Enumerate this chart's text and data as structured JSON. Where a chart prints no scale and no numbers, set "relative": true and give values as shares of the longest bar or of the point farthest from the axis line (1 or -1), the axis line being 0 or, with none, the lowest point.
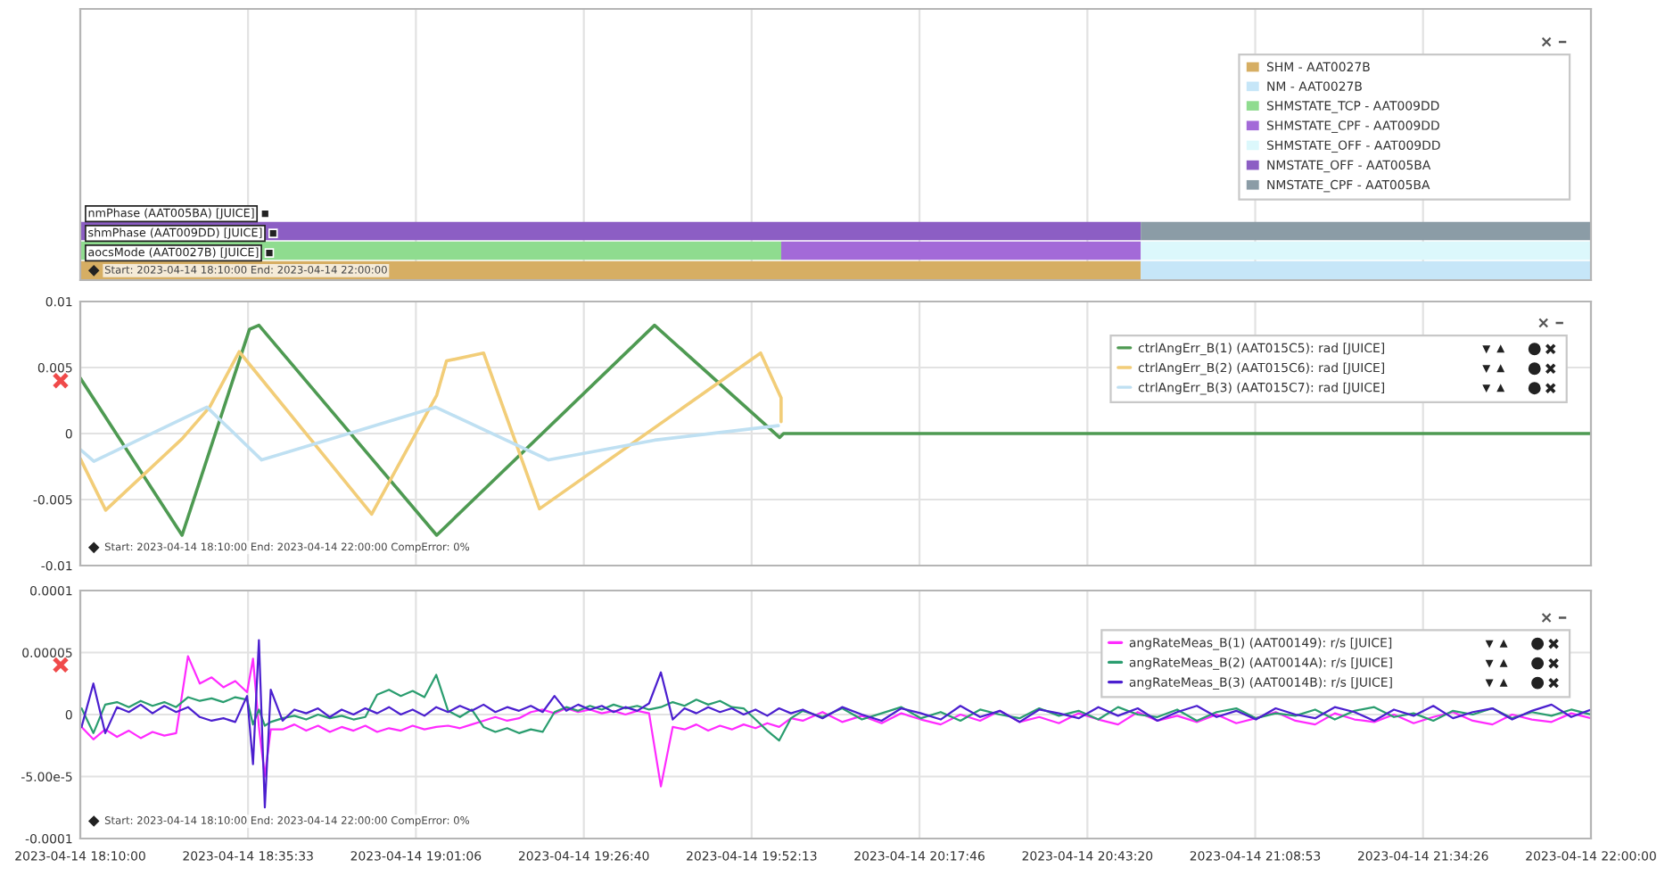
{
  "chart_data": [
    {
      "type": "bar",
      "orientation": "horizontal",
      "stacked": true,
      "relative": true,
      "categories": [
        "nmPhase (AAT005BA) [JUICE]",
        "shmPhase (AAT009DD) [JUICE]",
        "aocsMode (AAT0027B) [JUICE]"
      ],
      "series": [
        {
          "name": "SHM - AAT0027B",
          "color": "#d6ae63",
          "values": [
            null,
            null,
            0.702
          ]
        },
        {
          "name": "NM - AAT0027B",
          "color": "#c6e6f8",
          "values": [
            null,
            null,
            0.298
          ]
        },
        {
          "name": "SHMSTATE_TCP - AAT009DD",
          "color": "#8fdc8f",
          "values": [
            null,
            0.464,
            null
          ]
        },
        {
          "name": "SHMSTATE_CPF - AAT009DD",
          "color": "#a36ad8",
          "values": [
            null,
            0.238,
            null
          ]
        },
        {
          "name": "SHMSTATE_OFF - AAT009DD",
          "color": "#dcf8fc",
          "values": [
            null,
            0.298,
            null
          ]
        },
        {
          "name": "NMSTATE_OFF - AAT005BA",
          "color": "#8c5ec4",
          "values": [
            0.702,
            null,
            null
          ]
        },
        {
          "name": "NMSTATE_CPF - AAT005BA",
          "color": "#8b9ca6",
          "values": [
            0.298,
            null,
            null
          ]
        }
      ],
      "grid": "x",
      "legend": "top right",
      "tick_labels": "y",
      "annotations": [
        "Start: 2023-04-14 18:10:00 End: 2023-04-14 22:00:00"
      ]
    },
    {
      "type": "line",
      "line_style": "solid",
      "series": [
        {
          "name": "ctrlAngErr_B(1) (AAT015C5): rad [JUICE]",
          "color": "#4e9a52",
          "x": [
            "2023-04-14T18:10:00",
            "2023-04-14T18:25:30",
            "2023-04-14T18:35:46",
            "2023-04-14T18:37:12",
            "2023-04-14T19:04:16",
            "2023-04-14T19:37:26",
            "2023-04-14T19:56:28",
            "2023-04-14T19:57:04",
            "2023-04-14T22:00:00"
          ],
          "values": [
            0.0042,
            -0.0077,
            0.0079,
            0.0082,
            -0.0077,
            0.0082,
            -0.0003,
            0,
            0
          ]
        },
        {
          "name": "ctrlAngErr_B(2) (AAT015C6): rad [JUICE]",
          "color": "#f2cd78",
          "x": [
            "2023-04-14T18:10:00",
            "2023-04-14T18:13:52",
            "2023-04-14T18:25:30",
            "2023-04-14T18:29:42",
            "2023-04-14T18:34:12",
            "2023-04-14T18:54:22",
            "2023-04-14T19:04:16",
            "2023-04-14T19:05:46",
            "2023-04-14T19:11:24",
            "2023-04-14T19:19:55",
            "2023-04-14T19:53:35",
            "2023-04-14T19:56:42",
            "2023-04-14T19:56:42"
          ],
          "values": [
            -0.0019,
            -0.0058,
            -0.0004,
            0.002,
            0.0062,
            -0.0061,
            0.0029,
            0.0055,
            0.0061,
            -0.0057,
            0.0061,
            0.0027,
            0.0009
          ]
        },
        {
          "name": "ctrlAngErr_B(3) (AAT015C7): rad [JUICE]",
          "color": "#bfe0f2",
          "x": [
            "2023-04-14T18:10:00",
            "2023-04-14T18:12:04",
            "2023-04-14T18:29:17",
            "2023-04-14T18:37:37",
            "2023-04-14T19:04:05",
            "2023-04-14T19:21:18",
            "2023-04-14T19:37:26",
            "2023-04-14T19:56:17"
          ],
          "values": [
            -0.0012,
            -0.0021,
            0.002,
            -0.002,
            0.002,
            -0.002,
            -0.0005,
            0.0006
          ]
        }
      ],
      "xlim": [
        "2023-04-14T18:10:00",
        "2023-04-14T22:00:00"
      ],
      "ylim": [
        -0.01,
        0.01
      ],
      "yticks": [
        -0.01,
        -0.005,
        0,
        0.005,
        0.01
      ],
      "grid": true,
      "legend": "top right",
      "tick_labels": "y",
      "annotations": [
        "Start: 2023-04-14 18:10:00 End: 2023-04-14 22:00:00 CompError: 0%"
      ]
    },
    {
      "type": "line",
      "line_style": "solid",
      "x": [
        "2023-04-14T18:10:12",
        "2023-04-14T18:12:00",
        "2023-04-14T18:13:48",
        "2023-04-14T18:15:36",
        "2023-04-14T18:17:24",
        "2023-04-14T18:19:12",
        "2023-04-14T18:21:00",
        "2023-04-14T18:22:48",
        "2023-04-14T18:24:36",
        "2023-04-14T18:26:24",
        "2023-04-14T18:28:12",
        "2023-04-14T18:30:00",
        "2023-04-14T18:31:48",
        "2023-04-14T18:33:36",
        "2023-04-14T18:35:24",
        "2023-04-14T18:36:18",
        "2023-04-14T18:37:12",
        "2023-04-14T18:38:06",
        "2023-04-14T18:39:00",
        "2023-04-14T18:40:48",
        "2023-04-14T18:42:36",
        "2023-04-14T18:44:24",
        "2023-04-14T18:46:12",
        "2023-04-14T18:48:00",
        "2023-04-14T18:49:48",
        "2023-04-14T18:51:36",
        "2023-04-14T18:53:24",
        "2023-04-14T18:55:12",
        "2023-04-14T18:57:00",
        "2023-04-14T18:58:48",
        "2023-04-14T19:00:36",
        "2023-04-14T19:02:24",
        "2023-04-14T19:04:12",
        "2023-04-14T19:06:00",
        "2023-04-14T19:07:48",
        "2023-04-14T19:09:36",
        "2023-04-14T19:11:24",
        "2023-04-14T19:13:12",
        "2023-04-14T19:15:00",
        "2023-04-14T19:16:48",
        "2023-04-14T19:18:36",
        "2023-04-14T19:20:24",
        "2023-04-14T19:22:12",
        "2023-04-14T19:24:00",
        "2023-04-14T19:25:48",
        "2023-04-14T19:27:36",
        "2023-04-14T19:29:24",
        "2023-04-14T19:31:12",
        "2023-04-14T19:33:00",
        "2023-04-14T19:34:48",
        "2023-04-14T19:36:36",
        "2023-04-14T19:38:24",
        "2023-04-14T19:40:12",
        "2023-04-14T19:42:00",
        "2023-04-14T19:43:48",
        "2023-04-14T19:45:36",
        "2023-04-14T19:47:24",
        "2023-04-14T19:49:12",
        "2023-04-14T19:51:00",
        "2023-04-14T19:52:48",
        "2023-04-14T19:54:36",
        "2023-04-14T19:56:24",
        "2023-04-14T19:58:12",
        "2023-04-14T20:00",
        "2023-04-14T20:03",
        "2023-04-14T20:06",
        "2023-04-14T20:09",
        "2023-04-14T20:12",
        "2023-04-14T20:15",
        "2023-04-14T20:18",
        "2023-04-14T20:21",
        "2023-04-14T20:24",
        "2023-04-14T20:27",
        "2023-04-14T20:30",
        "2023-04-14T20:33",
        "2023-04-14T20:36",
        "2023-04-14T20:39",
        "2023-04-14T20:42",
        "2023-04-14T20:45",
        "2023-04-14T20:48",
        "2023-04-14T20:51",
        "2023-04-14T20:54",
        "2023-04-14T20:57",
        "2023-04-14T21:00",
        "2023-04-14T21:03",
        "2023-04-14T21:06",
        "2023-04-14T21:09",
        "2023-04-14T21:12",
        "2023-04-14T21:15",
        "2023-04-14T21:18",
        "2023-04-14T21:21",
        "2023-04-14T21:24",
        "2023-04-14T21:27",
        "2023-04-14T21:30",
        "2023-04-14T21:33",
        "2023-04-14T21:36",
        "2023-04-14T21:39",
        "2023-04-14T21:42",
        "2023-04-14T21:45",
        "2023-04-14T21:48",
        "2023-04-14T21:51",
        "2023-04-14T21:54",
        "2023-04-14T21:57",
        "2023-04-14T22:00"
      ],
      "series": [
        {
          "name": "angRateMeas_B(1) (AAT00149): r/s [JUICE]",
          "color": "#ff2bff",
          "values": [
            -1e-05,
            -2e-05,
            -1.2e-05,
            -1.8e-05,
            -1.3e-05,
            -1.9e-05,
            -1.4e-05,
            -1.7e-05,
            -1.5e-05,
            4.7e-05,
            2.5e-05,
            3e-05,
            2.2e-05,
            2.7e-05,
            1.8e-05,
            4.5e-05,
            -1e-05,
            -5e-05,
            -1.2e-05,
            -1.2e-05,
            -8e-06,
            -1.3e-05,
            -9e-06,
            -1.4e-05,
            -1e-05,
            -1.3e-05,
            -9e-06,
            -1.4e-05,
            -1.1e-05,
            -1.3e-05,
            -9e-06,
            -1.2e-05,
            -1e-05,
            -9e-06,
            -1.1e-05,
            -8e-06,
            -5e-06,
            -2e-06,
            -5e-06,
            -3e-06,
            2e-06,
            4e-06,
            1e-06,
            5e-06,
            2e-06,
            4e-06,
            1e-06,
            3e-06,
            0,
            3e-06,
            1e-06,
            -5.8e-05,
            -1e-05,
            -1.2e-05,
            -8e-06,
            -1.3e-05,
            -9e-06,
            -1.2e-05,
            -8e-06,
            -1.1e-05,
            -7e-06,
            -1e-05,
            -3e-06,
            -5e-06,
            2e-06,
            -6e-06,
            -1e-06,
            -7e-06,
            1e-06,
            -4e-06,
            -8e-06,
            0,
            -5e-06,
            3e-06,
            -6e-06,
            -2e-06,
            -7e-06,
            1e-06,
            -4e-06,
            -8e-06,
            2e-06,
            -5e-06,
            -1e-06,
            -6e-06,
            0,
            -7e-06,
            -3e-06,
            2e-06,
            -5e-06,
            -8e-06,
            1e-06,
            -4e-06,
            -6e-06,
            0,
            -7e-06,
            -2e-06,
            2e-06,
            -5e-06,
            -8e-06,
            0,
            -4e-06,
            -6e-06,
            1e-06,
            -3e-06
          ]
        },
        {
          "name": "angRateMeas_B(2) (AAT0014A): r/s [JUICE]",
          "color": "#2a9d6f",
          "values": [
            5e-06,
            -1.5e-05,
            8e-06,
            1e-05,
            6e-06,
            1.1e-05,
            7e-06,
            1e-05,
            6e-06,
            1.4e-05,
            1.1e-05,
            1.3e-05,
            1e-05,
            1.4e-05,
            1.2e-05,
            -8e-06,
            4e-06,
            -9e-06,
            -6e-06,
            -3e-06,
            -1e-06,
            -4e-06,
            0,
            -3e-06,
            -1e-06,
            -4e-06,
            -2e-06,
            1.6e-05,
            2e-05,
            1.5e-05,
            1.9e-05,
            1.4e-05,
            3.2e-05,
            3e-06,
            -2e-06,
            4e-06,
            -1e-05,
            -1.4e-05,
            -1.1e-05,
            -1.5e-05,
            -1.2e-05,
            -1.4e-05,
            2e-06,
            6e-06,
            3e-06,
            7e-06,
            4e-06,
            8e-06,
            5e-06,
            7e-06,
            4e-06,
            6e-06,
            1e-05,
            7e-06,
            1.2e-05,
            8e-06,
            1.1e-05,
            6e-06,
            5e-06,
            -4e-06,
            -1.3e-05,
            -2.1e-05,
            -3e-06,
            3e-06,
            -2e-06,
            5e-06,
            -4e-06,
            1e-06,
            6e-06,
            -3e-06,
            2e-06,
            -5e-06,
            4e-06,
            0,
            -3e-06,
            5e-06,
            -1e-06,
            3e-06,
            -4e-06,
            6e-06,
            0,
            -2e-06,
            4e-06,
            -5e-06,
            2e-06,
            5e-06,
            -3e-06,
            1e-06,
            -1e-06,
            4e-06,
            -4e-06,
            3e-06,
            6e-06,
            -2e-06,
            1e-06,
            -5e-06,
            3e-06,
            0,
            5e-06,
            -3e-06,
            2e-06,
            -1e-06,
            4e-06,
            0
          ]
        },
        {
          "name": "angRateMeas_B(3) (AAT0014B): r/s [JUICE]",
          "color": "#4b1fcf",
          "values": [
            -1e-05,
            2.5e-05,
            -1.5e-05,
            6e-06,
            2e-06,
            8e-06,
            1e-06,
            7e-06,
            2e-06,
            6e-06,
            -2e-06,
            -5e-06,
            -3e-06,
            -6e-06,
            1.5e-05,
            -4e-05,
            6e-05,
            -7.5e-05,
            2e-05,
            -5e-06,
            4e-06,
            1e-06,
            5e-06,
            -2e-06,
            4e-06,
            0,
            5e-06,
            1e-06,
            6e-06,
            0,
            4e-06,
            -1e-06,
            6e-06,
            2e-06,
            7e-06,
            3e-06,
            8e-06,
            2e-06,
            6e-06,
            3e-06,
            7e-06,
            2e-06,
            1.5e-05,
            3e-06,
            8e-06,
            4e-06,
            7e-06,
            2e-06,
            6e-06,
            3e-06,
            9e-06,
            3.4e-05,
            -4e-06,
            5e-06,
            1e-06,
            6e-06,
            2e-06,
            5e-06,
            0,
            4e-06,
            -1e-06,
            5e-06,
            1e-06,
            4e-06,
            -3e-06,
            6e-06,
            0,
            -5e-06,
            5e-06,
            1e-06,
            -4e-06,
            7e-06,
            -2e-06,
            3e-06,
            -6e-06,
            4e-06,
            1e-06,
            -3e-06,
            6e-06,
            -1e-06,
            5e-06,
            -5e-06,
            2e-06,
            7e-06,
            -2e-06,
            3e-06,
            -4e-06,
            5e-06,
            0,
            -3e-06,
            6e-06,
            2e-06,
            -5e-06,
            4e-06,
            -1e-06,
            7e-06,
            -3e-06,
            2e-06,
            5e-06,
            -4e-06,
            3e-06,
            8e-06,
            -2e-06,
            4e-06
          ]
        }
      ],
      "xlim": [
        "2023-04-14T18:10:00",
        "2023-04-14T22:00:00"
      ],
      "xticks": [
        {
          "value": "2023-04-14T18:10:00",
          "label": "2023-04-14 18:10:00"
        },
        {
          "value": "2023-04-14T18:35:33",
          "label": "2023-04-14 18:35:33"
        },
        {
          "value": "2023-04-14T19:01:06",
          "label": "2023-04-14 19:01:06"
        },
        {
          "value": "2023-04-14T19:26:40",
          "label": "2023-04-14 19:26:40"
        },
        {
          "value": "2023-04-14T19:52:13",
          "label": "2023-04-14 19:52:13"
        },
        {
          "value": "2023-04-14T20:17:46",
          "label": "2023-04-14 20:17:46"
        },
        {
          "value": "2023-04-14T20:43:20",
          "label": "2023-04-14 20:43:20"
        },
        {
          "value": "2023-04-14T21:08:53",
          "label": "2023-04-14 21:08:53"
        },
        {
          "value": "2023-04-14T21:34:26",
          "label": "2023-04-14 21:34:26"
        },
        {
          "value": "2023-04-14T22:00:00",
          "label": "2023-04-14 22:00:00"
        }
      ],
      "ylim": [
        -0.0001,
        0.0001
      ],
      "yticks": [
        -0.0001,
        {
          "value": -5e-05,
          "label": "-5.00e-5"
        },
        0,
        {
          "value": 5e-05,
          "label": "0.00005"
        },
        0.0001
      ],
      "grid": true,
      "legend": "top right",
      "annotations": [
        "Start: 2023-04-14 18:10:00 End: 2023-04-14 22:00:00 CompError: 0%"
      ]
    }
  ]
}
